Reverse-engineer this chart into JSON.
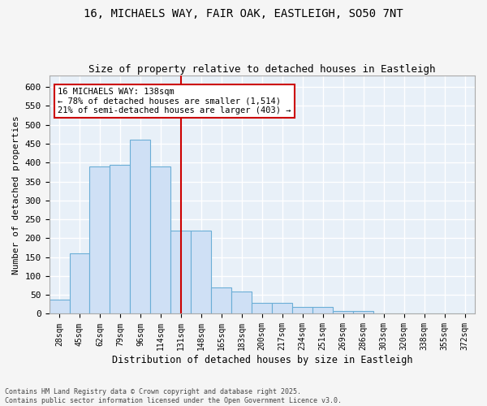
{
  "title_line1": "16, MICHAELS WAY, FAIR OAK, EASTLEIGH, SO50 7NT",
  "title_line2": "Size of property relative to detached houses in Eastleigh",
  "xlabel": "Distribution of detached houses by size in Eastleigh",
  "ylabel": "Number of detached properties",
  "bar_color": "#cfe0f5",
  "bar_edge_color": "#6baed6",
  "background_color": "#e8f0f8",
  "grid_color": "#ffffff",
  "annotation_box_color": "#cc0000",
  "vline_color": "#cc0000",
  "categories": [
    "28sqm",
    "45sqm",
    "62sqm",
    "79sqm",
    "96sqm",
    "114sqm",
    "131sqm",
    "148sqm",
    "165sqm",
    "183sqm",
    "200sqm",
    "217sqm",
    "234sqm",
    "251sqm",
    "269sqm",
    "286sqm",
    "303sqm",
    "320sqm",
    "338sqm",
    "355sqm",
    "372sqm"
  ],
  "values": [
    38,
    160,
    390,
    395,
    460,
    390,
    220,
    220,
    70,
    60,
    28,
    28,
    18,
    18,
    8,
    8,
    0,
    0,
    0,
    0,
    0
  ],
  "property_label": "16 MICHAELS WAY: 138sqm",
  "pct_smaller": 78,
  "n_smaller": 1514,
  "pct_larger_semi": 21,
  "n_larger_semi": 403,
  "vline_x_index": 6.5,
  "ylim": [
    0,
    630
  ],
  "yticks": [
    0,
    50,
    100,
    150,
    200,
    250,
    300,
    350,
    400,
    450,
    500,
    550,
    600
  ],
  "footer_line1": "Contains HM Land Registry data © Crown copyright and database right 2025.",
  "footer_line2": "Contains public sector information licensed under the Open Government Licence v3.0."
}
